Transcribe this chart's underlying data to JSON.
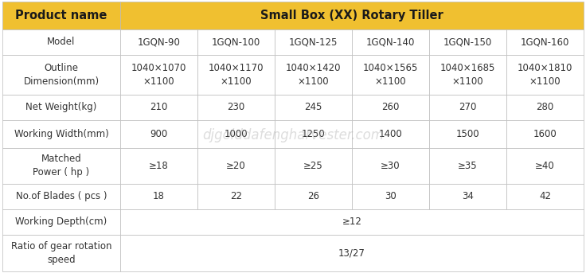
{
  "title": "Small Box (XX) Rotary Tiller",
  "header_bg": "#F0C030",
  "border_color": "#BBBBBB",
  "col_header": "Product name",
  "rows": [
    {
      "label": "Model",
      "values": [
        "1GQN-90",
        "1GQN-100",
        "1GQN-125",
        "1GQN-140",
        "1GQN-150",
        "1GQN-160"
      ],
      "span": false
    },
    {
      "label": "Outline\nDimension(mm)",
      "values": [
        "1040×1070\n×1100",
        "1040×1170\n×1100",
        "1040×1420\n×1100",
        "1040×1565\n×1100",
        "1040×1685\n×1100",
        "1040×1810\n×1100"
      ],
      "span": false
    },
    {
      "label": "Net Weight(kg)",
      "values": [
        "210",
        "230",
        "245",
        "260",
        "270",
        "280"
      ],
      "span": false
    },
    {
      "label": "Working Width(mm)",
      "values": [
        "900",
        "1000",
        "1250",
        "1400",
        "1500",
        "1600"
      ],
      "span": false
    },
    {
      "label": "Matched\nPower ( hp )",
      "values": [
        "≥18",
        "≥20",
        "≥25",
        "≥30",
        "≥35",
        "≥40"
      ],
      "span": false
    },
    {
      "label": "No.of Blades ( pcs )",
      "values": [
        "18",
        "22",
        "26",
        "30",
        "34",
        "42"
      ],
      "span": false
    },
    {
      "label": "Working Depth(cm)",
      "values": [
        "≥12"
      ],
      "span": true
    },
    {
      "label": "Ratio of gear rotation\nspeed",
      "values": [
        "13/27"
      ],
      "span": true
    }
  ],
  "text_color": "#333333",
  "font_size": 8.5,
  "header_font_size": 10.5,
  "watermark": "djgolddafengharvester.com"
}
